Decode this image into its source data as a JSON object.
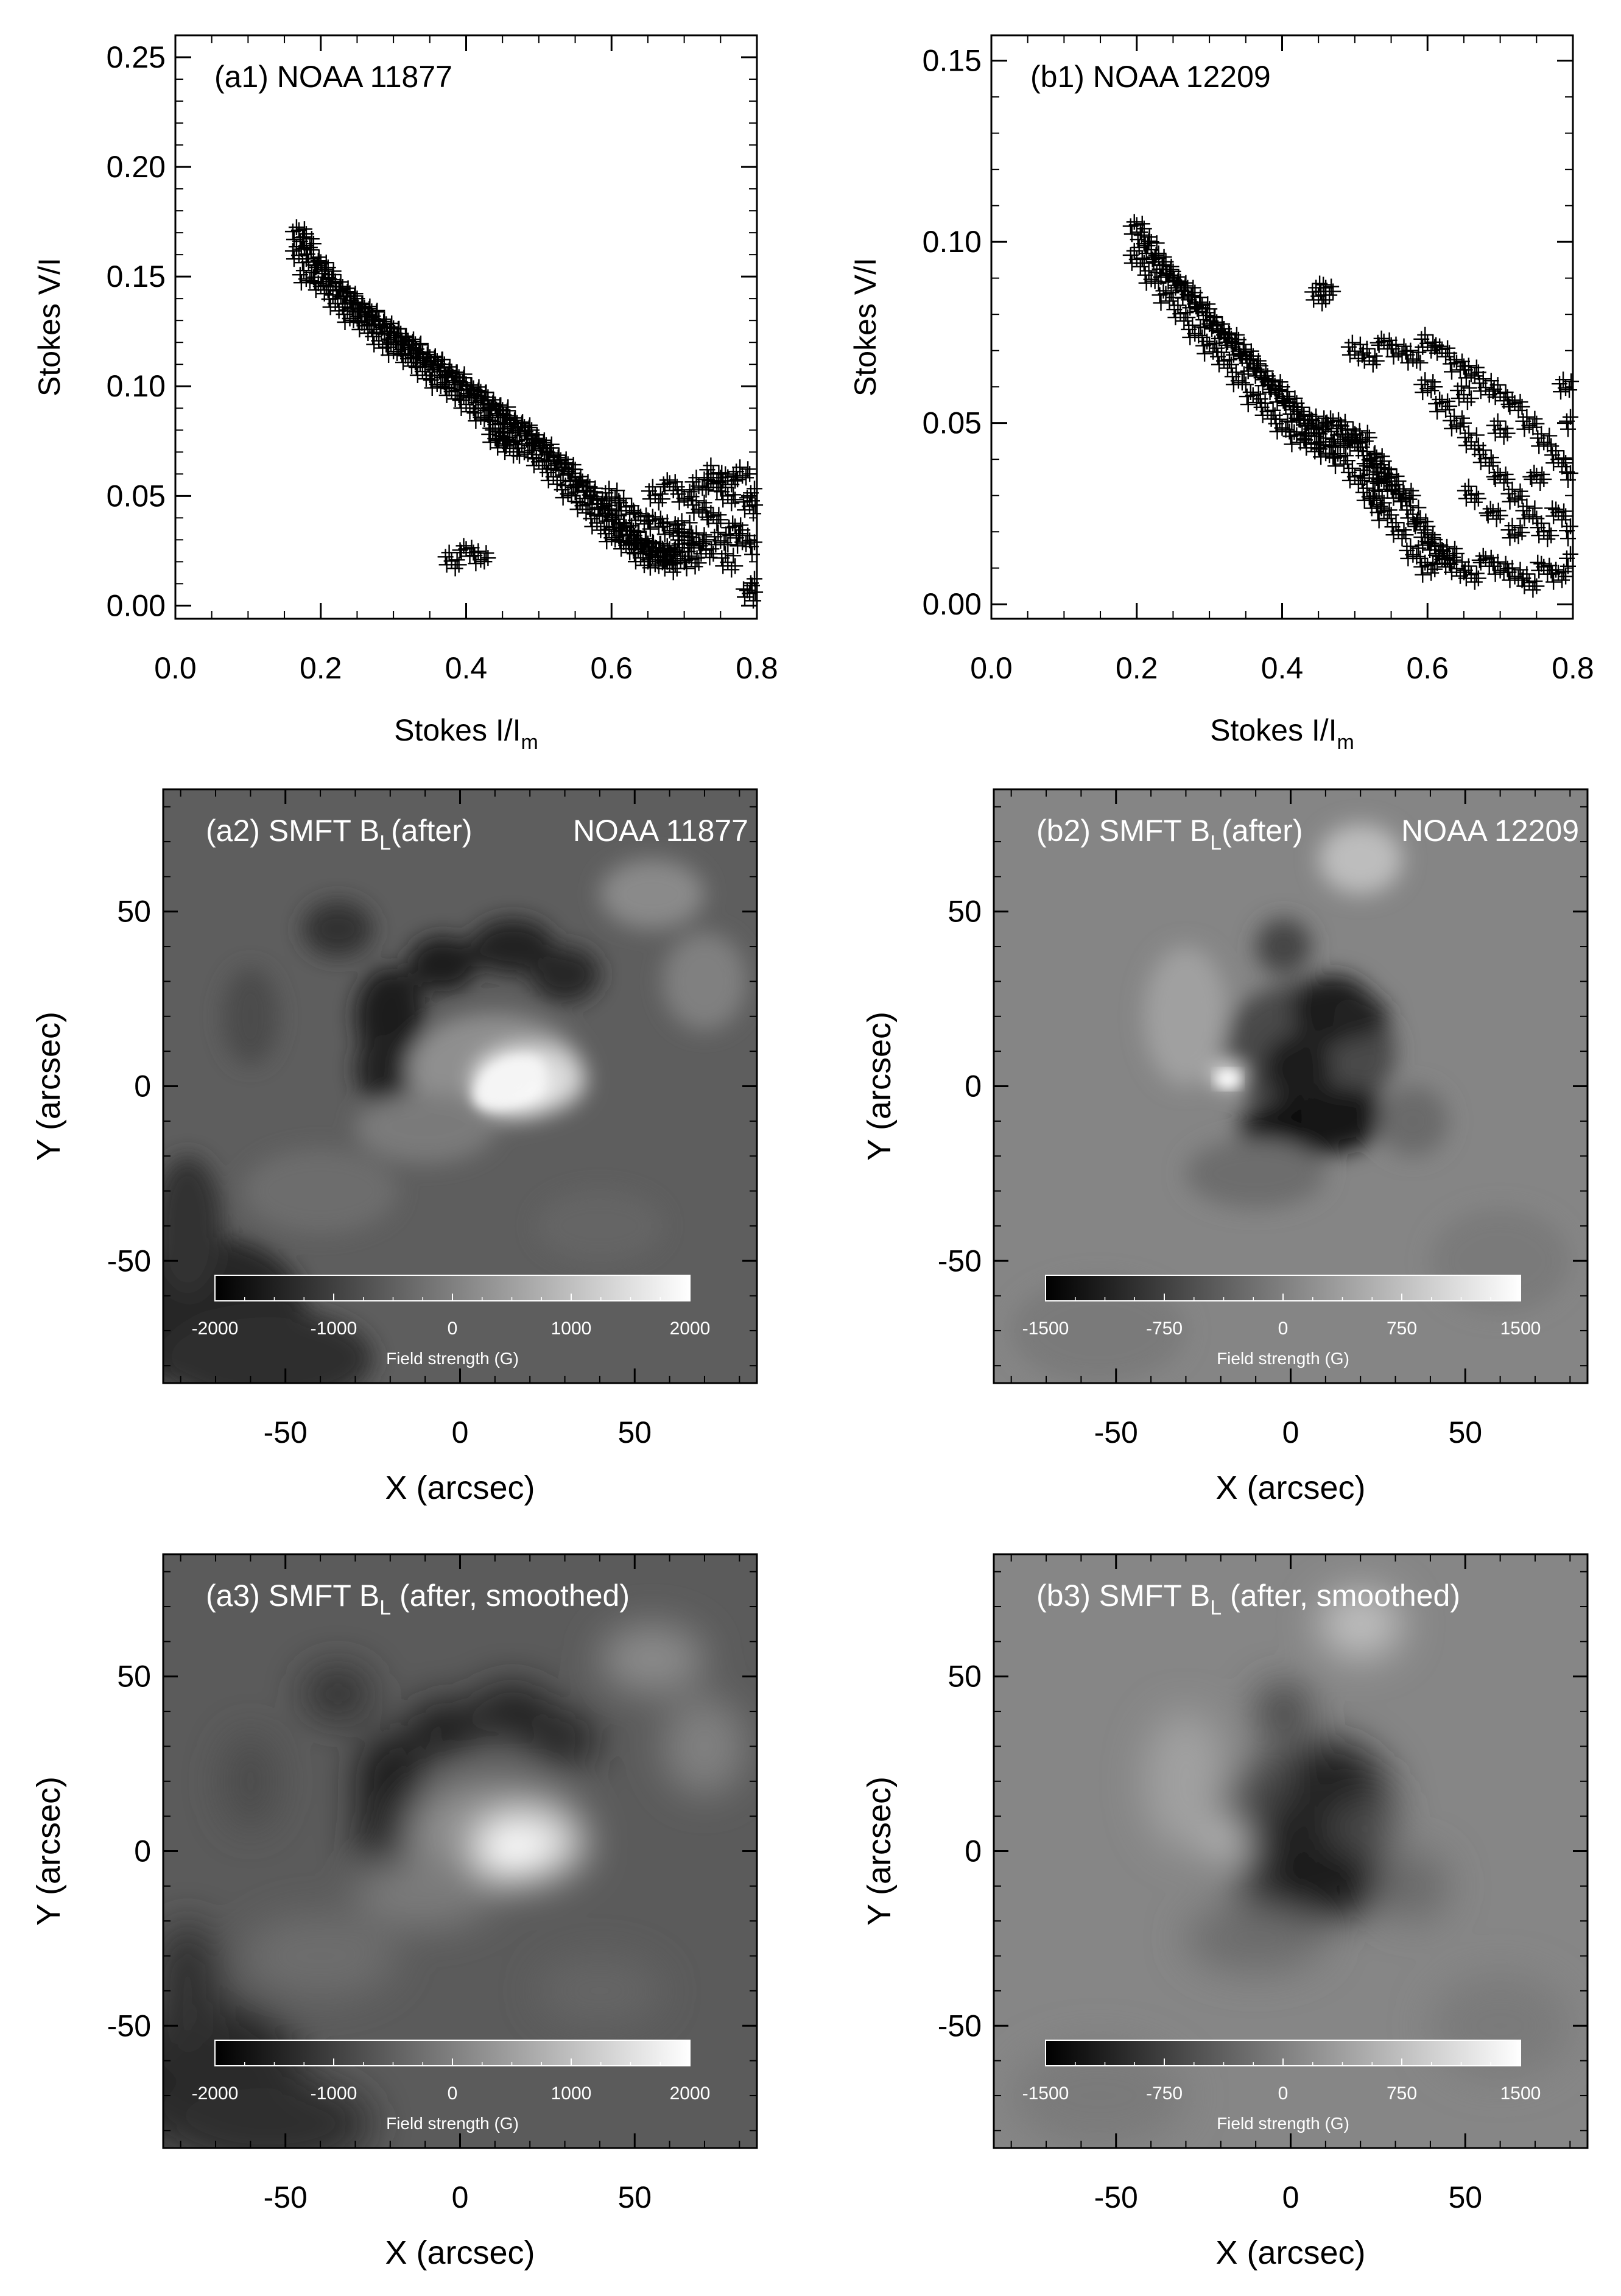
{
  "chart_data": [
    {
      "id": "a1",
      "type": "scatter",
      "title": "(a1)  NOAA 11877",
      "xlabel": "Stokes I/I",
      "xlabel_sub": "m",
      "ylabel": "Stokes V/I",
      "xlim": [
        0.0,
        0.8
      ],
      "ylim": [
        -0.006,
        0.26
      ],
      "xticks": [
        0.0,
        0.2,
        0.4,
        0.6,
        0.8
      ],
      "xtick_labels": [
        "0.0",
        "0.2",
        "0.4",
        "0.6",
        "0.8"
      ],
      "yticks": [
        0.0,
        0.05,
        0.1,
        0.15,
        0.2,
        0.25
      ],
      "ytick_labels": [
        "0.00",
        "0.05",
        "0.10",
        "0.15",
        "0.20",
        "0.25"
      ],
      "marker": "plus",
      "points": [
        [
          0.17,
          0.17
        ],
        [
          0.18,
          0.165
        ],
        [
          0.17,
          0.16
        ],
        [
          0.19,
          0.158
        ],
        [
          0.2,
          0.155
        ],
        [
          0.18,
          0.15
        ],
        [
          0.21,
          0.15
        ],
        [
          0.22,
          0.147
        ],
        [
          0.2,
          0.145
        ],
        [
          0.23,
          0.143
        ],
        [
          0.24,
          0.14
        ],
        [
          0.22,
          0.138
        ],
        [
          0.25,
          0.137
        ],
        [
          0.26,
          0.135
        ],
        [
          0.24,
          0.132
        ],
        [
          0.27,
          0.132
        ],
        [
          0.28,
          0.13
        ],
        [
          0.26,
          0.127
        ],
        [
          0.29,
          0.127
        ],
        [
          0.3,
          0.124
        ],
        [
          0.28,
          0.121
        ],
        [
          0.31,
          0.122
        ],
        [
          0.32,
          0.12
        ],
        [
          0.3,
          0.117
        ],
        [
          0.33,
          0.117
        ],
        [
          0.34,
          0.115
        ],
        [
          0.32,
          0.112
        ],
        [
          0.35,
          0.112
        ],
        [
          0.36,
          0.11
        ],
        [
          0.34,
          0.107
        ],
        [
          0.37,
          0.108
        ],
        [
          0.38,
          0.105
        ],
        [
          0.36,
          0.102
        ],
        [
          0.39,
          0.103
        ],
        [
          0.4,
          0.1
        ],
        [
          0.38,
          0.097
        ],
        [
          0.41,
          0.098
        ],
        [
          0.42,
          0.095
        ],
        [
          0.4,
          0.092
        ],
        [
          0.43,
          0.093
        ],
        [
          0.44,
          0.09
        ],
        [
          0.42,
          0.087
        ],
        [
          0.45,
          0.088
        ],
        [
          0.46,
          0.085
        ],
        [
          0.44,
          0.082
        ],
        [
          0.47,
          0.082
        ],
        [
          0.48,
          0.08
        ],
        [
          0.46,
          0.077
        ],
        [
          0.49,
          0.077
        ],
        [
          0.5,
          0.074
        ],
        [
          0.48,
          0.071
        ],
        [
          0.51,
          0.071
        ],
        [
          0.52,
          0.068
        ],
        [
          0.5,
          0.065
        ],
        [
          0.53,
          0.065
        ],
        [
          0.54,
          0.062
        ],
        [
          0.52,
          0.059
        ],
        [
          0.55,
          0.058
        ],
        [
          0.56,
          0.055
        ],
        [
          0.54,
          0.052
        ],
        [
          0.57,
          0.051
        ],
        [
          0.58,
          0.048
        ],
        [
          0.56,
          0.045
        ],
        [
          0.59,
          0.044
        ],
        [
          0.6,
          0.041
        ],
        [
          0.58,
          0.038
        ],
        [
          0.61,
          0.037
        ],
        [
          0.62,
          0.035
        ],
        [
          0.6,
          0.032
        ],
        [
          0.63,
          0.031
        ],
        [
          0.64,
          0.03
        ],
        [
          0.62,
          0.027
        ],
        [
          0.65,
          0.027
        ],
        [
          0.66,
          0.026
        ],
        [
          0.64,
          0.022
        ],
        [
          0.67,
          0.024
        ],
        [
          0.68,
          0.025
        ],
        [
          0.66,
          0.02
        ],
        [
          0.69,
          0.022
        ],
        [
          0.7,
          0.028
        ],
        [
          0.68,
          0.018
        ],
        [
          0.71,
          0.02
        ],
        [
          0.72,
          0.03
        ],
        [
          0.7,
          0.035
        ],
        [
          0.73,
          0.025
        ],
        [
          0.74,
          0.04
        ],
        [
          0.72,
          0.045
        ],
        [
          0.75,
          0.03
        ],
        [
          0.76,
          0.05
        ],
        [
          0.74,
          0.055
        ],
        [
          0.77,
          0.035
        ],
        [
          0.78,
          0.06
        ],
        [
          0.76,
          0.02
        ],
        [
          0.79,
          0.045
        ],
        [
          0.8,
          0.01
        ],
        [
          0.78,
          0.03
        ],
        [
          0.8,
          0.05
        ],
        [
          0.8,
          0.025
        ],
        [
          0.79,
          0.005
        ],
        [
          0.45,
          0.075
        ],
        [
          0.44,
          0.077
        ],
        [
          0.46,
          0.072
        ],
        [
          0.38,
          0.02
        ],
        [
          0.4,
          0.025
        ],
        [
          0.42,
          0.022
        ],
        [
          0.6,
          0.05
        ],
        [
          0.62,
          0.045
        ],
        [
          0.64,
          0.04
        ],
        [
          0.66,
          0.038
        ],
        [
          0.68,
          0.035
        ],
        [
          0.7,
          0.03
        ],
        [
          0.66,
          0.05
        ],
        [
          0.68,
          0.055
        ],
        [
          0.7,
          0.05
        ],
        [
          0.72,
          0.055
        ],
        [
          0.74,
          0.06
        ],
        [
          0.76,
          0.058
        ]
      ]
    },
    {
      "id": "b1",
      "type": "scatter",
      "title": "(b1)   NOAA 12209",
      "xlabel": "Stokes I/I",
      "xlabel_sub": "m",
      "ylabel": "Stokes V/I",
      "xlim": [
        0.0,
        0.8
      ],
      "ylim": [
        -0.004,
        0.157
      ],
      "xticks": [
        0.0,
        0.2,
        0.4,
        0.6,
        0.8
      ],
      "xtick_labels": [
        "0.0",
        "0.2",
        "0.4",
        "0.6",
        "0.8"
      ],
      "yticks": [
        0.0,
        0.05,
        0.1,
        0.15
      ],
      "ytick_labels": [
        "0.00",
        "0.05",
        "0.10",
        "0.15"
      ],
      "marker": "plus",
      "points": [
        [
          0.2,
          0.104
        ],
        [
          0.21,
          0.1
        ],
        [
          0.22,
          0.098
        ],
        [
          0.2,
          0.095
        ],
        [
          0.23,
          0.095
        ],
        [
          0.24,
          0.092
        ],
        [
          0.22,
          0.09
        ],
        [
          0.25,
          0.09
        ],
        [
          0.26,
          0.088
        ],
        [
          0.24,
          0.085
        ],
        [
          0.27,
          0.086
        ],
        [
          0.28,
          0.083
        ],
        [
          0.26,
          0.08
        ],
        [
          0.29,
          0.082
        ],
        [
          0.3,
          0.078
        ],
        [
          0.28,
          0.075
        ],
        [
          0.31,
          0.077
        ],
        [
          0.32,
          0.074
        ],
        [
          0.3,
          0.071
        ],
        [
          0.33,
          0.073
        ],
        [
          0.34,
          0.07
        ],
        [
          0.32,
          0.067
        ],
        [
          0.35,
          0.069
        ],
        [
          0.36,
          0.066
        ],
        [
          0.34,
          0.062
        ],
        [
          0.37,
          0.064
        ],
        [
          0.38,
          0.061
        ],
        [
          0.36,
          0.057
        ],
        [
          0.39,
          0.06
        ],
        [
          0.4,
          0.057
        ],
        [
          0.38,
          0.053
        ],
        [
          0.41,
          0.056
        ],
        [
          0.42,
          0.052
        ],
        [
          0.4,
          0.049
        ],
        [
          0.43,
          0.052
        ],
        [
          0.44,
          0.048
        ],
        [
          0.42,
          0.046
        ],
        [
          0.45,
          0.05
        ],
        [
          0.46,
          0.046
        ],
        [
          0.44,
          0.044
        ],
        [
          0.47,
          0.05
        ],
        [
          0.48,
          0.045
        ],
        [
          0.46,
          0.042
        ],
        [
          0.49,
          0.048
        ],
        [
          0.5,
          0.044
        ],
        [
          0.48,
          0.04
        ],
        [
          0.51,
          0.046
        ],
        [
          0.52,
          0.04
        ],
        [
          0.5,
          0.035
        ],
        [
          0.53,
          0.04
        ],
        [
          0.54,
          0.036
        ],
        [
          0.52,
          0.03
        ],
        [
          0.55,
          0.035
        ],
        [
          0.56,
          0.03
        ],
        [
          0.54,
          0.025
        ],
        [
          0.57,
          0.03
        ],
        [
          0.58,
          0.025
        ],
        [
          0.56,
          0.02
        ],
        [
          0.59,
          0.022
        ],
        [
          0.6,
          0.018
        ],
        [
          0.58,
          0.014
        ],
        [
          0.61,
          0.016
        ],
        [
          0.62,
          0.012
        ],
        [
          0.6,
          0.01
        ],
        [
          0.63,
          0.014
        ],
        [
          0.64,
          0.01
        ],
        [
          0.66,
          0.008
        ],
        [
          0.68,
          0.012
        ],
        [
          0.7,
          0.01
        ],
        [
          0.72,
          0.008
        ],
        [
          0.74,
          0.006
        ],
        [
          0.76,
          0.01
        ],
        [
          0.78,
          0.008
        ],
        [
          0.8,
          0.012
        ],
        [
          0.5,
          0.07
        ],
        [
          0.52,
          0.068
        ],
        [
          0.54,
          0.072
        ],
        [
          0.56,
          0.07
        ],
        [
          0.58,
          0.068
        ],
        [
          0.6,
          0.072
        ],
        [
          0.62,
          0.07
        ],
        [
          0.64,
          0.066
        ],
        [
          0.66,
          0.064
        ],
        [
          0.68,
          0.06
        ],
        [
          0.7,
          0.058
        ],
        [
          0.72,
          0.055
        ],
        [
          0.74,
          0.05
        ],
        [
          0.76,
          0.045
        ],
        [
          0.78,
          0.04
        ],
        [
          0.8,
          0.035
        ],
        [
          0.62,
          0.055
        ],
        [
          0.64,
          0.05
        ],
        [
          0.66,
          0.045
        ],
        [
          0.68,
          0.04
        ],
        [
          0.7,
          0.035
        ],
        [
          0.72,
          0.03
        ],
        [
          0.74,
          0.025
        ],
        [
          0.76,
          0.02
        ],
        [
          0.78,
          0.025
        ],
        [
          0.8,
          0.02
        ],
        [
          0.6,
          0.06
        ],
        [
          0.65,
          0.058
        ],
        [
          0.7,
          0.048
        ],
        [
          0.75,
          0.035
        ],
        [
          0.8,
          0.05
        ],
        [
          0.79,
          0.06
        ],
        [
          0.45,
          0.085
        ],
        [
          0.46,
          0.087
        ],
        [
          0.54,
          0.033
        ],
        [
          0.53,
          0.028
        ],
        [
          0.52,
          0.036
        ],
        [
          0.66,
          0.03
        ],
        [
          0.69,
          0.025
        ],
        [
          0.72,
          0.02
        ]
      ]
    },
    {
      "id": "a2",
      "type": "heatmap",
      "title_prefix": "(a2) SMFT B",
      "title_sub": "L",
      "title_suffix": "(after)",
      "title_right": "NOAA 11877",
      "xlabel": "X (arcsec)",
      "ylabel": "Y (arcsec)",
      "xlim": [
        -85,
        85
      ],
      "ylim": [
        -85,
        85
      ],
      "xticks": [
        -50,
        0,
        50
      ],
      "xtick_labels": [
        "-50",
        "0",
        "50"
      ],
      "yticks": [
        -50,
        0,
        50
      ],
      "ytick_labels": [
        "-50",
        "0",
        "50"
      ],
      "background": "#5e5e5e",
      "colorbar": {
        "min": -2000,
        "max": 2000,
        "ticks": [
          "-2000",
          "-1000",
          "0",
          "1000",
          "2000"
        ],
        "label": "Field strength (G)"
      }
    },
    {
      "id": "b2",
      "type": "heatmap",
      "title_prefix": "(b2) SMFT B",
      "title_sub": "L",
      "title_suffix": "(after)",
      "title_right": "NOAA 12209",
      "xlabel": "X (arcsec)",
      "ylabel": "Y (arcsec)",
      "xlim": [
        -85,
        85
      ],
      "ylim": [
        -85,
        85
      ],
      "xticks": [
        -50,
        0,
        50
      ],
      "xtick_labels": [
        "-50",
        "0",
        "50"
      ],
      "yticks": [
        -50,
        0,
        50
      ],
      "ytick_labels": [
        "-50",
        "0",
        "50"
      ],
      "background": "#858585",
      "colorbar": {
        "min": -1500,
        "max": 1500,
        "ticks": [
          "-1500",
          "-750",
          "0",
          "750",
          "1500"
        ],
        "label": "Field strength (G)"
      }
    },
    {
      "id": "a3",
      "type": "heatmap",
      "title_prefix": "(a3) SMFT B",
      "title_sub": "L",
      "title_suffix": " (after, smoothed)",
      "title_right": "",
      "xlabel": "X (arcsec)",
      "ylabel": "Y (arcsec)",
      "xlim": [
        -85,
        85
      ],
      "ylim": [
        -85,
        85
      ],
      "xticks": [
        -50,
        0,
        50
      ],
      "xtick_labels": [
        "-50",
        "0",
        "50"
      ],
      "yticks": [
        -50,
        0,
        50
      ],
      "ytick_labels": [
        "-50",
        "0",
        "50"
      ],
      "background": "#5b5b5b",
      "colorbar": {
        "min": -2000,
        "max": 2000,
        "ticks": [
          "-2000",
          "-1000",
          "0",
          "1000",
          "2000"
        ],
        "label": "Field strength (G)"
      }
    },
    {
      "id": "b3",
      "type": "heatmap",
      "title_prefix": "(b3) SMFT B",
      "title_sub": "L",
      "title_suffix": " (after, smoothed)",
      "title_right": "",
      "xlabel": "X (arcsec)",
      "ylabel": "Y (arcsec)",
      "xlim": [
        -85,
        85
      ],
      "ylim": [
        -85,
        85
      ],
      "xticks": [
        -50,
        0,
        50
      ],
      "xtick_labels": [
        "-50",
        "0",
        "50"
      ],
      "yticks": [
        -50,
        0,
        50
      ],
      "ytick_labels": [
        "-50",
        "0",
        "50"
      ],
      "background": "#868686",
      "colorbar": {
        "min": -1500,
        "max": 1500,
        "ticks": [
          "-1500",
          "-750",
          "0",
          "750",
          "1500"
        ],
        "label": "Field strength (G)"
      }
    }
  ]
}
